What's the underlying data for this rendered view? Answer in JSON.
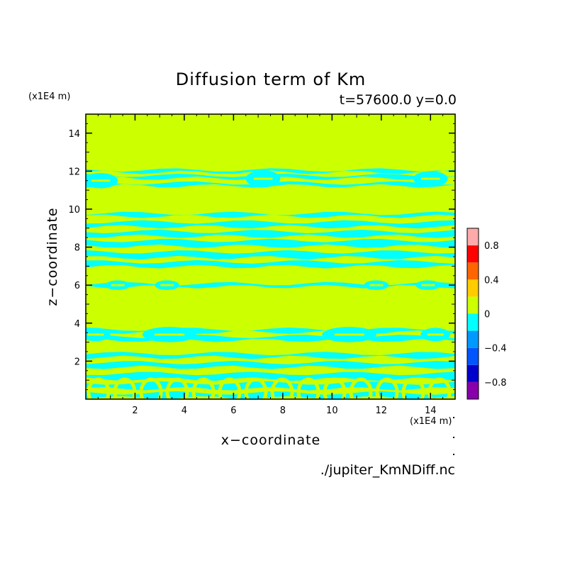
{
  "chart_data": {
    "type": "heatmap",
    "title": "Diffusion term of Km",
    "subtitle": "t=57600.0 y=0.0",
    "xlabel": "x−coordinate",
    "ylabel": "z−coordinate",
    "x_unit": "(x1E4 m)",
    "y_unit": "(x1E4 m)",
    "xlim": [
      0,
      15
    ],
    "ylim": [
      0,
      15
    ],
    "x_ticks": [
      2,
      4,
      6,
      8,
      10,
      12,
      14
    ],
    "y_ticks": [
      2,
      4,
      6,
      8,
      10,
      12,
      14
    ],
    "source": "./jupiter_KmNDiff.nc",
    "colorbar": {
      "levels": [
        -1.0,
        -0.8,
        -0.6,
        -0.4,
        -0.2,
        0.0,
        0.2,
        0.4,
        0.6,
        0.8,
        1.0
      ],
      "colors": [
        "#8800aa",
        "#0000cc",
        "#0055ff",
        "#0099ff",
        "#00ffff",
        "#ccff00",
        "#ffcc00",
        "#ff6600",
        "#ff0000",
        "#ffaaaa"
      ],
      "tick_labels": [
        {
          "value": 0.8,
          "label": "0.8"
        },
        {
          "value": 0.4,
          "label": "0.4"
        },
        {
          "value": 0,
          "label": "0"
        },
        {
          "value": -0.4,
          "label": "−0.4"
        },
        {
          "value": -0.8,
          "label": "−0.8"
        }
      ]
    },
    "background_color": "#ccff00",
    "feature_color": "#00ffff",
    "bands": [
      {
        "z": 0.2,
        "h": 0.25
      },
      {
        "z": 0.7,
        "h": 0.3
      },
      {
        "z": 1.2,
        "h": 0.3
      },
      {
        "z": 1.8,
        "h": 0.25
      },
      {
        "z": 2.3,
        "h": 0.2
      },
      {
        "z": 3.2,
        "h": 0.2
      },
      {
        "z": 3.6,
        "h": 0.15
      },
      {
        "z": 6.0,
        "h": 0.15
      },
      {
        "z": 7.1,
        "h": 0.25
      },
      {
        "z": 7.6,
        "h": 0.3
      },
      {
        "z": 8.2,
        "h": 0.3
      },
      {
        "z": 8.7,
        "h": 0.25
      },
      {
        "z": 9.2,
        "h": 0.25
      },
      {
        "z": 9.7,
        "h": 0.15
      },
      {
        "z": 11.3,
        "h": 0.15
      },
      {
        "z": 11.7,
        "h": 0.15
      },
      {
        "z": 12.0,
        "h": 0.12
      }
    ],
    "blobs": [
      {
        "x": 0.6,
        "z": 11.5,
        "w": 1.4,
        "h": 0.8
      },
      {
        "x": 7.2,
        "z": 11.6,
        "w": 1.4,
        "h": 0.9
      },
      {
        "x": 14.0,
        "z": 11.6,
        "w": 1.4,
        "h": 0.8
      },
      {
        "x": 1.3,
        "z": 6.0,
        "w": 1.0,
        "h": 0.5
      },
      {
        "x": 3.3,
        "z": 6.0,
        "w": 1.0,
        "h": 0.5
      },
      {
        "x": 11.8,
        "z": 6.0,
        "w": 1.0,
        "h": 0.5
      },
      {
        "x": 13.9,
        "z": 6.0,
        "w": 1.0,
        "h": 0.5
      },
      {
        "x": 0.4,
        "z": 3.4,
        "w": 1.2,
        "h": 0.7
      },
      {
        "x": 3.4,
        "z": 3.4,
        "w": 2.2,
        "h": 0.8
      },
      {
        "x": 10.7,
        "z": 3.4,
        "w": 2.2,
        "h": 0.8
      },
      {
        "x": 14.2,
        "z": 3.4,
        "w": 1.2,
        "h": 0.7
      }
    ]
  }
}
